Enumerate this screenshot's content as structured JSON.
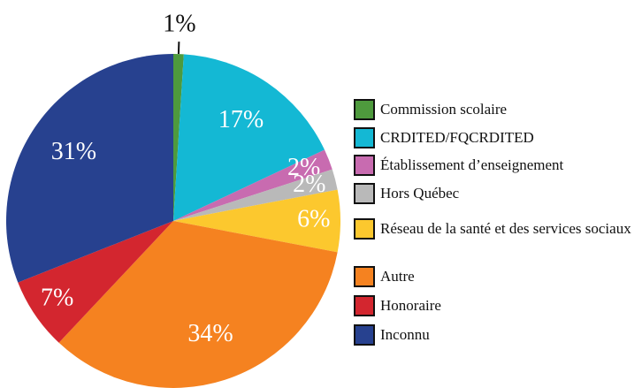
{
  "chart_data": {
    "type": "pie",
    "categories": [
      "Commission scolaire",
      "CRDITED/FQCRDITED",
      "Établissement d’enseignement",
      "Hors Québec",
      "Réseau de la santé et des services sociaux",
      "Autre",
      "Honoraire",
      "Inconnu"
    ],
    "values": [
      1,
      17,
      2,
      2,
      6,
      34,
      7,
      31
    ],
    "value_labels": [
      "1%",
      "17%",
      "2%",
      "2%",
      "6%",
      "34%",
      "7%",
      "31%"
    ],
    "colors": [
      "#4e9a3d",
      "#14b8d4",
      "#c86bb0",
      "#b9b9b9",
      "#fcc82e",
      "#f58220",
      "#d3262f",
      "#27418f"
    ]
  }
}
